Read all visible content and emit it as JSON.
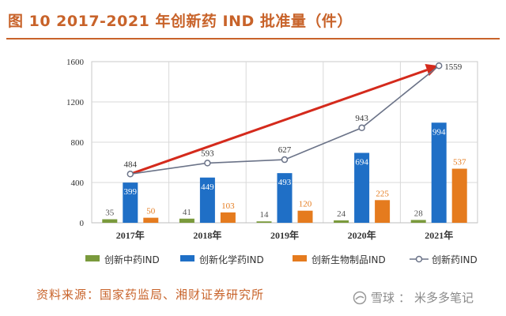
{
  "figure_title": "图 10 2017-2021 年创新药 IND 批准量（件）",
  "source_note": "资料来源：国家药监局、湘财证券研究所",
  "watermark": {
    "brand": "雪球",
    "separator": "：",
    "author": "米多多笔记"
  },
  "colors": {
    "accent": "#c8632a",
    "tcm": "#7a9a3c",
    "chem": "#1f6fc6",
    "bio": "#e57b1e",
    "total_line": "#6b7388",
    "trend_arrow": "#d42a1c"
  },
  "chart_data": {
    "type": "bar",
    "categories": [
      "2017年",
      "2018年",
      "2019年",
      "2020年",
      "2021年"
    ],
    "ylim": [
      0,
      1600
    ],
    "yticks": [
      "0",
      "400",
      "800",
      "1200",
      "1600"
    ],
    "grid": true,
    "legend_position": "bottom",
    "series": [
      {
        "name": "创新中药IND",
        "type": "bar",
        "color_key": "tcm",
        "values": [
          35,
          41,
          14,
          24,
          28
        ]
      },
      {
        "name": "创新化学药IND",
        "type": "bar",
        "color_key": "chem",
        "values": [
          399,
          449,
          493,
          694,
          994
        ]
      },
      {
        "name": "创新生物制品IND",
        "type": "bar",
        "color_key": "bio",
        "values": [
          50,
          103,
          120,
          225,
          537
        ]
      },
      {
        "name": "创新药IND",
        "type": "line",
        "color_key": "total_line",
        "values": [
          484,
          593,
          627,
          943,
          1559
        ]
      }
    ],
    "value_labels": [
      [
        "35",
        "41",
        "14",
        "24",
        "28"
      ],
      [
        "399",
        "449",
        "493",
        "694",
        "994"
      ],
      [
        "50",
        "103",
        "120",
        "225",
        "537"
      ],
      [
        "484",
        "593",
        "627",
        "943",
        "1559"
      ]
    ],
    "annotation": {
      "type": "trend-arrow",
      "from_category": "2017年",
      "from_value": 484,
      "to_category": "2021年",
      "to_value": 1559
    }
  }
}
